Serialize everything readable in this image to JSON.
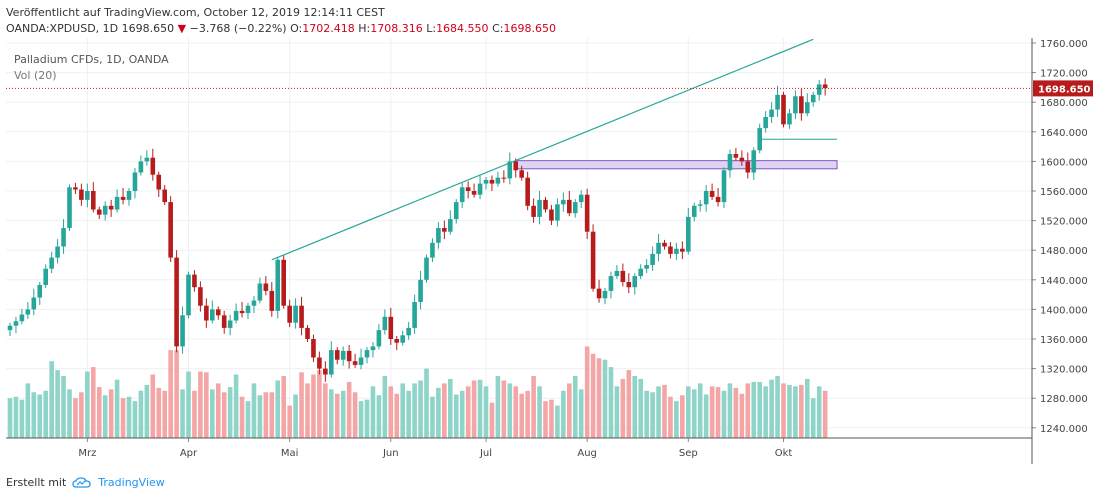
{
  "header": {
    "published": "Veröffentlicht auf TradingView.com, October 12, 2019 12:14:11 CEST",
    "symbol": "OANDA:XPDUSD, 1D",
    "last": "1698.650",
    "change": "−3.768 (−0.22%)",
    "o_label": "O:",
    "o": "1702.418",
    "h_label": "H:",
    "h": "1708.316",
    "l_label": "L:",
    "l": "1684.550",
    "c_label": "C:",
    "c": "1698.650"
  },
  "legend": {
    "title": "Palladium CFDs, 1D, OANDA",
    "volume": "Vol (20)"
  },
  "footer": {
    "created": "Erstellt mit",
    "brand": "TradingView"
  },
  "colors": {
    "up": "#26a69a",
    "down": "#b71c1c",
    "up_vol": "#8ed4c9",
    "down_vol": "#f4a6a6",
    "trendline": "#26a69a",
    "zone": "#d8cdf0",
    "price_line": "#b71c1c"
  },
  "chart_data": {
    "type": "candlestick",
    "title": "Palladium CFDs, 1D, OANDA",
    "xlabel": "",
    "ylabel": "",
    "ylim": [
      1220,
      1770
    ],
    "y_ticks": [
      "1760.000",
      "1720.000",
      "1680.000",
      "1640.000",
      "1600.000",
      "1560.000",
      "1520.000",
      "1480.000",
      "1440.000",
      "1400.000",
      "1360.000",
      "1320.000",
      "1280.000",
      "1240.000"
    ],
    "x_tick_labels": [
      {
        "label": "Mrz",
        "bar": 13
      },
      {
        "label": "Apr",
        "bar": 30
      },
      {
        "label": "Mai",
        "bar": 47
      },
      {
        "label": "Jun",
        "bar": 64
      },
      {
        "label": "Jul",
        "bar": 80
      },
      {
        "label": "Aug",
        "bar": 97
      },
      {
        "label": "Sep",
        "bar": 114
      },
      {
        "label": "Okt",
        "bar": 130
      }
    ],
    "last_price_label": "1698.650",
    "last_price": 1698.65,
    "trendline": {
      "from": [
        44,
        1467
      ],
      "to": [
        135,
        1765
      ]
    },
    "support_zone": {
      "from_bar": 85,
      "to_bar": 139,
      "low": 1590,
      "high": 1601
    },
    "support_line": {
      "from_bar": 126,
      "to_bar": 139,
      "value": 1630
    },
    "closes": [
      1378,
      1384,
      1393,
      1400,
      1416,
      1433,
      1455,
      1470,
      1485,
      1510,
      1565,
      1562,
      1548,
      1560,
      1535,
      1528,
      1540,
      1535,
      1552,
      1548,
      1560,
      1585,
      1600,
      1605,
      1582,
      1562,
      1545,
      1470,
      1350,
      1392,
      1447,
      1430,
      1405,
      1385,
      1400,
      1392,
      1375,
      1385,
      1398,
      1395,
      1405,
      1412,
      1435,
      1425,
      1398,
      1467,
      1405,
      1382,
      1405,
      1375,
      1360,
      1335,
      1320,
      1312,
      1345,
      1332,
      1344,
      1330,
      1325,
      1335,
      1345,
      1350,
      1372,
      1390,
      1360,
      1355,
      1365,
      1375,
      1410,
      1440,
      1470,
      1490,
      1510,
      1505,
      1522,
      1545,
      1565,
      1560,
      1555,
      1570,
      1575,
      1570,
      1578,
      1577,
      1600,
      1588,
      1578,
      1540,
      1525,
      1548,
      1535,
      1520,
      1542,
      1548,
      1530,
      1545,
      1555,
      1505,
      1428,
      1415,
      1425,
      1445,
      1452,
      1437,
      1430,
      1445,
      1455,
      1460,
      1475,
      1490,
      1485,
      1475,
      1482,
      1478,
      1525,
      1540,
      1542,
      1560,
      1552,
      1545,
      1588,
      1610,
      1605,
      1600,
      1585,
      1615,
      1645,
      1660,
      1670,
      1690,
      1650,
      1665,
      1688,
      1665,
      1680,
      1690,
      1704,
      1699
    ],
    "volumes": [
      1280,
      1282,
      1278,
      1300,
      1288,
      1285,
      1290,
      1330,
      1318,
      1310,
      1292,
      1280,
      1288,
      1316,
      1322,
      1295,
      1284,
      1292,
      1305,
      1280,
      1282,
      1276,
      1290,
      1298,
      1312,
      1294,
      1290,
      1345,
      1345,
      1292,
      1316,
      1290,
      1316,
      1315,
      1292,
      1300,
      1288,
      1295,
      1312,
      1282,
      1276,
      1300,
      1284,
      1288,
      1288,
      1304,
      1310,
      1270,
      1285,
      1315,
      1300,
      1312,
      1318,
      1300,
      1292,
      1286,
      1290,
      1302,
      1288,
      1276,
      1278,
      1296,
      1284,
      1310,
      1296,
      1286,
      1300,
      1290,
      1300,
      1304,
      1320,
      1282,
      1294,
      1300,
      1306,
      1285,
      1290,
      1296,
      1304,
      1305,
      1296,
      1274,
      1310,
      1304,
      1300,
      1296,
      1286,
      1290,
      1310,
      1296,
      1276,
      1278,
      1270,
      1290,
      1300,
      1310,
      1292,
      1350,
      1340,
      1334,
      1332,
      1322,
      1296,
      1306,
      1318,
      1310,
      1306,
      1290,
      1288,
      1296,
      1298,
      1282,
      1276,
      1284,
      1296,
      1292,
      1300,
      1285,
      1296,
      1295,
      1290,
      1300,
      1294,
      1286,
      1300,
      1302,
      1302,
      1296,
      1305,
      1310,
      1300,
      1298,
      1296,
      1298,
      1306,
      1280,
      1296,
      1290
    ]
  }
}
